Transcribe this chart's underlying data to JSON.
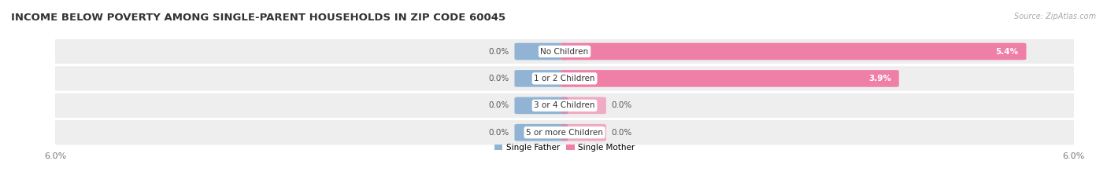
{
  "title": "INCOME BELOW POVERTY AMONG SINGLE-PARENT HOUSEHOLDS IN ZIP CODE 60045",
  "source": "Source: ZipAtlas.com",
  "categories": [
    "No Children",
    "1 or 2 Children",
    "3 or 4 Children",
    "5 or more Children"
  ],
  "single_father_values": [
    0.0,
    0.0,
    0.0,
    0.0
  ],
  "single_mother_values": [
    5.4,
    3.9,
    0.0,
    0.0
  ],
  "x_min": -6.0,
  "x_max": 6.0,
  "father_color": "#92b4d4",
  "mother_color": "#f07fa8",
  "row_bg_color": "#eeeeee",
  "row_bg_color2": "#f8f8f8",
  "title_fontsize": 9.5,
  "label_fontsize": 7.5,
  "tick_fontsize": 8,
  "source_fontsize": 7,
  "legend_fontsize": 7.5,
  "father_stub": 0.55,
  "mother_stub": 0.45
}
